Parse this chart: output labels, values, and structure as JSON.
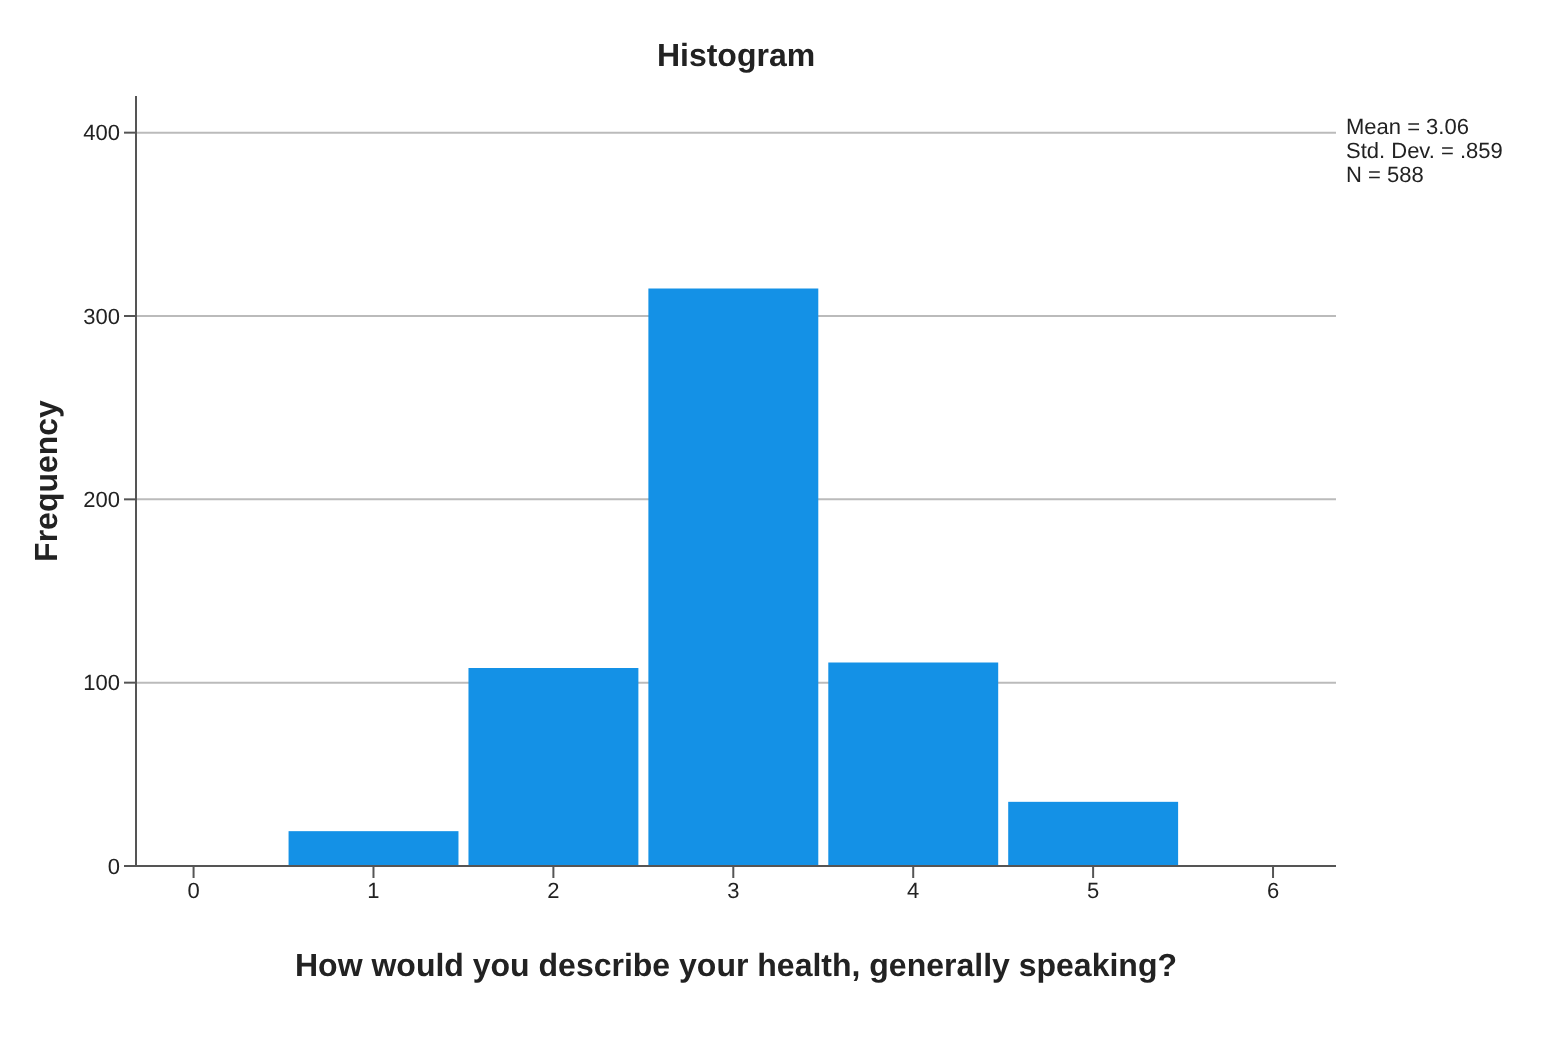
{
  "chart_data": {
    "type": "histogram",
    "title": "Histogram",
    "xlabel": "How would you describe your health, generally speaking?",
    "ylabel": "Frequency",
    "bins": [
      0.5,
      1.5,
      2.5,
      3.5,
      4.5,
      5.5
    ],
    "values": [
      19,
      108,
      315,
      111,
      35
    ],
    "color": "#1491e6",
    "xlim": [
      -0.32,
      6.35
    ],
    "xticks": [
      0,
      1,
      2,
      3,
      4,
      5,
      6
    ],
    "ylim": [
      0,
      420
    ],
    "yticks": [
      0,
      100,
      200,
      300,
      400
    ],
    "grid": "y",
    "annotations": [
      "Mean = 3.06",
      "Std. Dev. = .859",
      "N = 588"
    ]
  }
}
